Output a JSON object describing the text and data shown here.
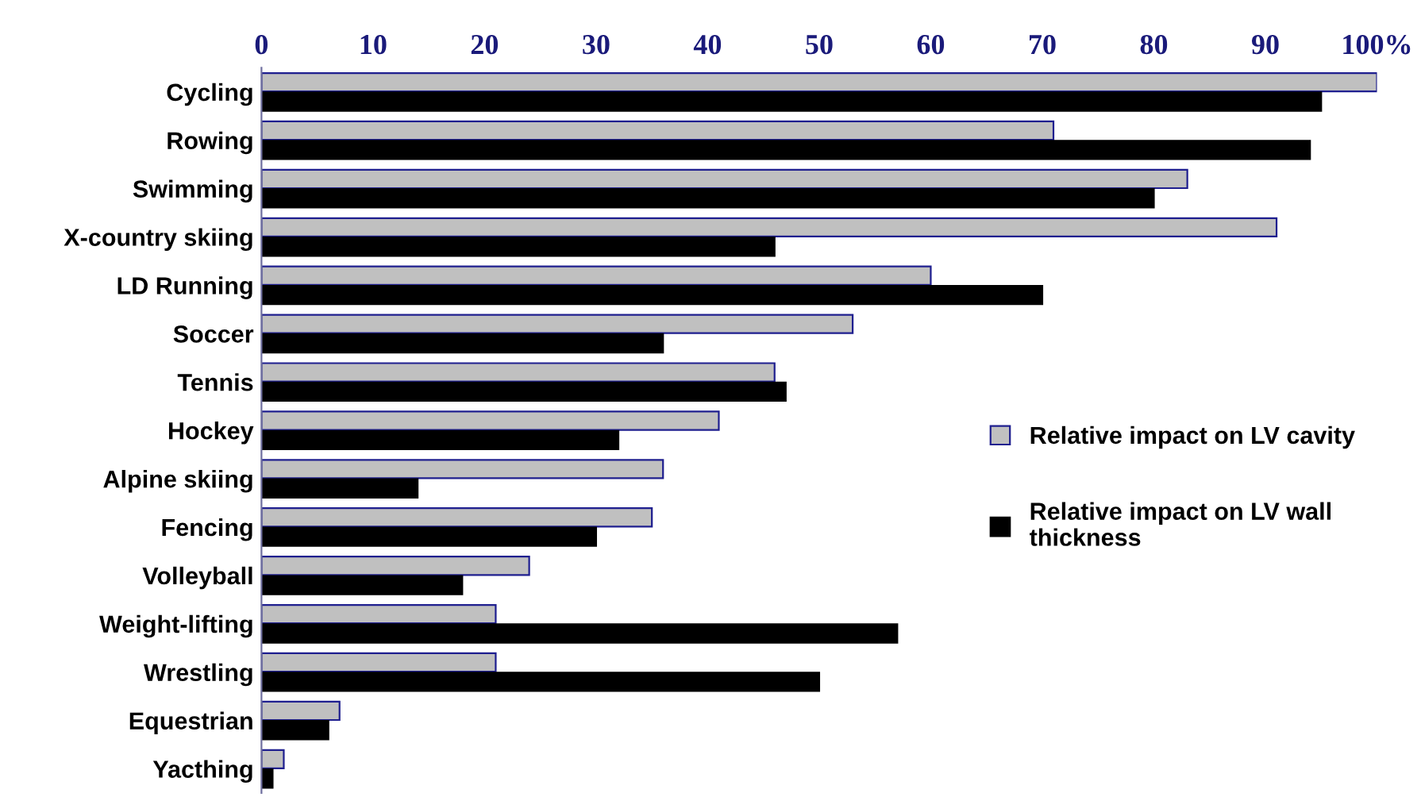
{
  "chart_data": {
    "type": "bar",
    "orientation": "horizontal",
    "categories": [
      "Cycling",
      "Rowing",
      "Swimming",
      "X-country skiing",
      "LD Running",
      "Soccer",
      "Tennis",
      "Hockey",
      "Alpine skiing",
      "Fencing",
      "Volleyball",
      "Weight-lifting",
      "Wrestling",
      "Equestrian",
      "Yacthing"
    ],
    "series": [
      {
        "name": "Relative impact on LV cavity",
        "color": "#c0c0c0",
        "values": [
          100,
          71,
          83,
          91,
          60,
          53,
          46,
          41,
          36,
          35,
          24,
          21,
          21,
          7,
          2
        ]
      },
      {
        "name": "Relative impact on LV wall thickness",
        "color": "#000000",
        "values": [
          95,
          94,
          80,
          46,
          70,
          36,
          47,
          32,
          14,
          30,
          18,
          57,
          50,
          6,
          1
        ]
      }
    ],
    "xlim": [
      0,
      100
    ],
    "xticks": [
      0,
      10,
      20,
      30,
      40,
      50,
      60,
      70,
      80,
      90,
      {
        "value": 100,
        "label": "100%"
      }
    ],
    "grid": false,
    "legend": "right"
  }
}
